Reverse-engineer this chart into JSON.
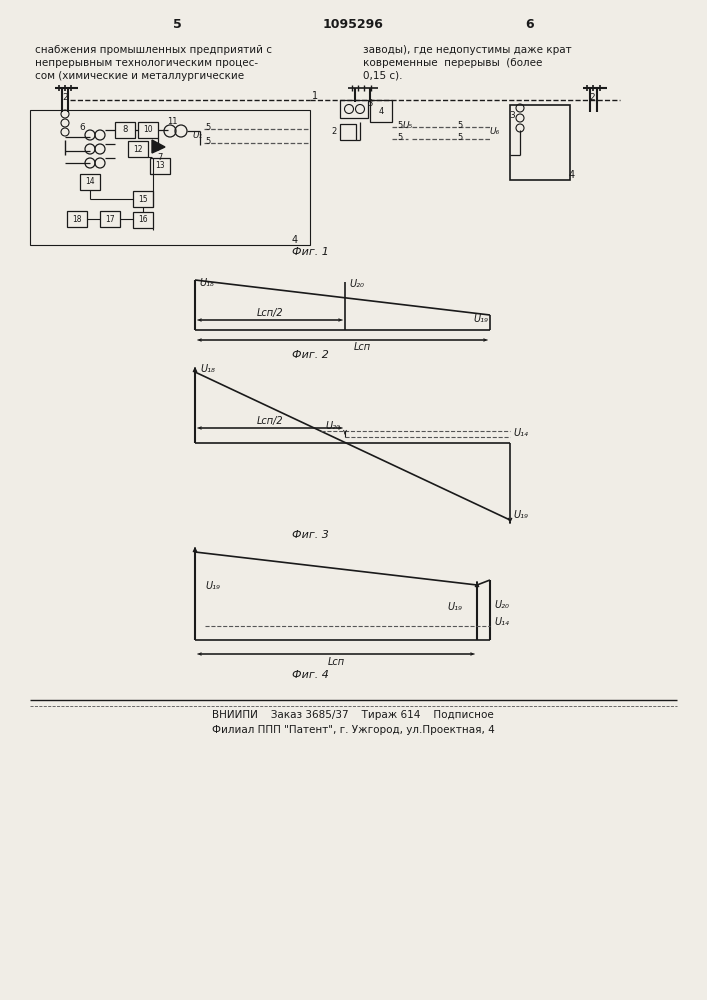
{
  "page_title": "1095296",
  "page_num_left": "5",
  "page_num_right": "6",
  "text_left_lines": [
    "снабжения промышленных предприятий с",
    "непрерывным технологическим процес-",
    "сом (химические и металлургические"
  ],
  "text_right_lines": [
    "заводы), где недопустимы даже крат",
    "ковременные  перерывы  (более",
    "0,15 с)."
  ],
  "fig1_caption": "Фиг. 1",
  "fig2_caption": "Фиг. 2",
  "fig3_caption": "Фиг. 3",
  "fig4_caption": "Фиг. 4",
  "footer1": "ВНИИПИ    Заказ 3685/37    Тираж 614    Подписное",
  "footer2": "Филиал ППП \"Патент\", г. Ужгород, ул.Проектная, 4",
  "bg_color": "#f0ede6",
  "lc": "#1a1a1a"
}
